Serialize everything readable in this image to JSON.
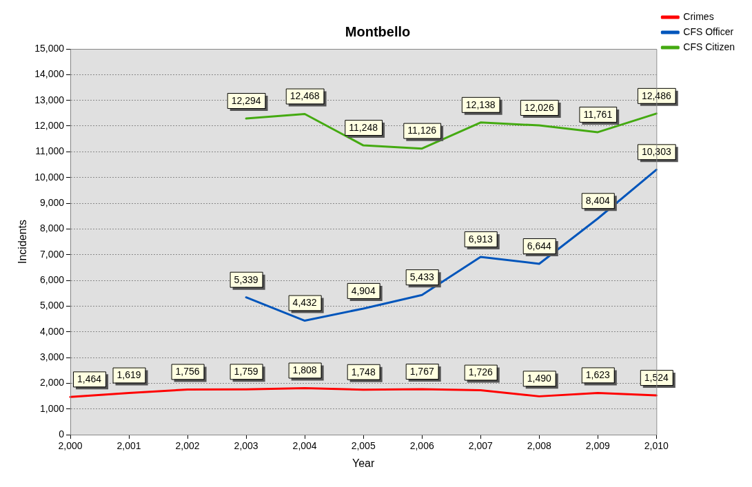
{
  "chart_data": {
    "type": "line",
    "title": "Montbello",
    "xlabel": "Year",
    "ylabel": "Incidents",
    "x": [
      2000,
      2001,
      2002,
      2003,
      2004,
      2005,
      2006,
      2007,
      2008,
      2009,
      2010
    ],
    "series": [
      {
        "name": "Crimes",
        "color": "#ff0000",
        "values": [
          1464,
          1619,
          1756,
          1759,
          1808,
          1748,
          1767,
          1726,
          1490,
          1623,
          1524
        ],
        "value_labels": [
          "1,464",
          "1,619",
          "1,756",
          "1,759",
          "1,808",
          "1,748",
          "1,767",
          "1,726",
          "1,490",
          "1,623",
          "1,524"
        ]
      },
      {
        "name": "CFS Officer",
        "color": "#0055bb",
        "values": [
          null,
          null,
          null,
          5339,
          4432,
          4904,
          5433,
          6913,
          6644,
          8404,
          10303
        ],
        "value_labels": [
          null,
          null,
          null,
          "5,339",
          "4,432",
          "4,904",
          "5,433",
          "6,913",
          "6,644",
          "8,404",
          "10,303"
        ]
      },
      {
        "name": "CFS Citizen",
        "color": "#44aa11",
        "values": [
          null,
          null,
          null,
          12294,
          12468,
          11248,
          11126,
          12138,
          12026,
          11761,
          12486
        ],
        "value_labels": [
          null,
          null,
          null,
          "12,294",
          "12,468",
          "11,248",
          "11,126",
          "12,138",
          "12,026",
          "11,761",
          "12,486"
        ]
      }
    ],
    "xlim": [
      2000,
      2010
    ],
    "xticks": [
      {
        "value": 2000,
        "label": "2,000"
      },
      {
        "value": 2001,
        "label": "2,001"
      },
      {
        "value": 2002,
        "label": "2,002"
      },
      {
        "value": 2003,
        "label": "2,003"
      },
      {
        "value": 2004,
        "label": "2,004"
      },
      {
        "value": 2005,
        "label": "2,005"
      },
      {
        "value": 2006,
        "label": "2,006"
      },
      {
        "value": 2007,
        "label": "2,007"
      },
      {
        "value": 2008,
        "label": "2,008"
      },
      {
        "value": 2009,
        "label": "2,009"
      },
      {
        "value": 2010,
        "label": "2,010"
      }
    ],
    "ylim": [
      0,
      15000
    ],
    "yticks": [
      0,
      {
        "value": 1000,
        "label": "1,000"
      },
      {
        "value": 2000,
        "label": "2,000"
      },
      {
        "value": 3000,
        "label": "3,000"
      },
      {
        "value": 4000,
        "label": "4,000"
      },
      {
        "value": 5000,
        "label": "5,000"
      },
      {
        "value": 6000,
        "label": "6,000"
      },
      {
        "value": 7000,
        "label": "7,000"
      },
      {
        "value": 8000,
        "label": "8,000"
      },
      {
        "value": 9000,
        "label": "9,000"
      },
      {
        "value": 10000,
        "label": "10,000"
      },
      {
        "value": 11000,
        "label": "11,000"
      },
      {
        "value": 12000,
        "label": "12,000"
      },
      {
        "value": 13000,
        "label": "13,000"
      },
      {
        "value": 14000,
        "label": "14,000"
      },
      {
        "value": 15000,
        "label": "15,000"
      }
    ],
    "grid": "y",
    "legend": "top right",
    "line_style": "solid"
  }
}
